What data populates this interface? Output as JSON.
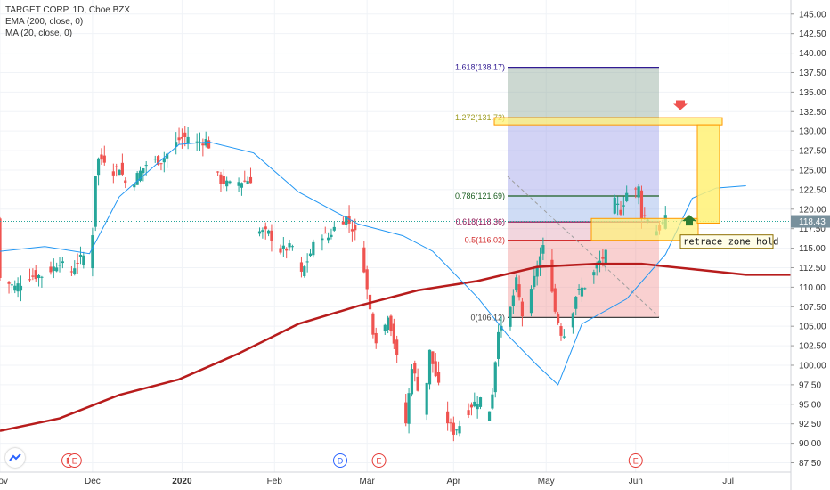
{
  "legend": {
    "symbol": "TARGET CORP, 1D, Cboe BZX",
    "ema": "EMA (200, close, 0)",
    "ma": "MA (20, close, 0)"
  },
  "colors": {
    "up": "#26a69a",
    "down": "#ef5350",
    "ema": "#b71c1c",
    "ma": "#2196f3",
    "fib1618": "#311b92",
    "fib1272": "#9e9d24",
    "fib0786": "#1b5e20",
    "fib0618": "#880e4f",
    "fib05": "#d32f2f",
    "fib0": "#424242",
    "zone": "#fff176",
    "zoneBorder": "#ff9800",
    "priceTag": "#78909c"
  },
  "current_price_label": "118.43",
  "annotation": "retrace zone hold",
  "event_markers": [
    "E",
    "E",
    "D",
    "E",
    "E"
  ],
  "chart_data": {
    "type": "candlestick",
    "title": "TARGET CORP, 1D, Cboe BZX",
    "x_ticks": [
      "Nov",
      "Dec",
      "2020",
      "Feb",
      "Mar",
      "Apr",
      "May",
      "Jun",
      "Jul"
    ],
    "y_ticks": [
      "145.00",
      "142.50",
      "140.00",
      "137.50",
      "135.00",
      "132.50",
      "130.00",
      "127.50",
      "125.00",
      "122.50",
      "120.00",
      "117.50",
      "115.00",
      "112.50",
      "110.00",
      "107.50",
      "105.00",
      "102.50",
      "100.00",
      "97.50",
      "95.00",
      "92.50",
      "90.00",
      "87.50"
    ],
    "ylim": [
      86.3,
      146.8
    ],
    "x_range_days": [
      0,
      265
    ],
    "last_price": 118.43,
    "fib_levels": [
      {
        "label": "1.618(138.17)",
        "value": 138.17
      },
      {
        "label": "1.272(131.72)",
        "value": 131.72
      },
      {
        "label": "0.786(121.69)",
        "value": 121.69
      },
      {
        "label": "0.618(118.36)",
        "value": 118.36
      },
      {
        "label": "0.5(116.02)",
        "value": 116.02
      },
      {
        "label": "0(106.12)",
        "value": 106.12
      }
    ],
    "series": [
      {
        "name": "EMA (200, close, 0)",
        "points": [
          [
            0,
            91.6
          ],
          [
            20,
            93.2
          ],
          [
            40,
            96.2
          ],
          [
            60,
            98.2
          ],
          [
            80,
            101.5
          ],
          [
            100,
            105.3
          ],
          [
            120,
            107.6
          ],
          [
            140,
            109.6
          ],
          [
            160,
            110.8
          ],
          [
            180,
            112.6
          ],
          [
            200,
            113.0
          ],
          [
            215,
            113.0
          ],
          [
            230,
            112.4
          ],
          [
            250,
            111.6
          ],
          [
            265,
            111.6
          ]
        ]
      },
      {
        "name": "MA (20, close, 0)",
        "points": [
          [
            0,
            114.6
          ],
          [
            15,
            115.2
          ],
          [
            30,
            114.3
          ],
          [
            40,
            121.6
          ],
          [
            60,
            128.3
          ],
          [
            70,
            128.6
          ],
          [
            85,
            127.2
          ],
          [
            100,
            122.2
          ],
          [
            120,
            118.1
          ],
          [
            135,
            116.6
          ],
          [
            145,
            114.6
          ],
          [
            160,
            108.7
          ],
          [
            170,
            103.9
          ],
          [
            180,
            100.0
          ],
          [
            187,
            97.5
          ],
          [
            195,
            105.3
          ],
          [
            210,
            108.5
          ],
          [
            223,
            114.2
          ],
          [
            232,
            121.4
          ],
          [
            240,
            122.7
          ],
          [
            250,
            123.0
          ]
        ]
      }
    ]
  }
}
